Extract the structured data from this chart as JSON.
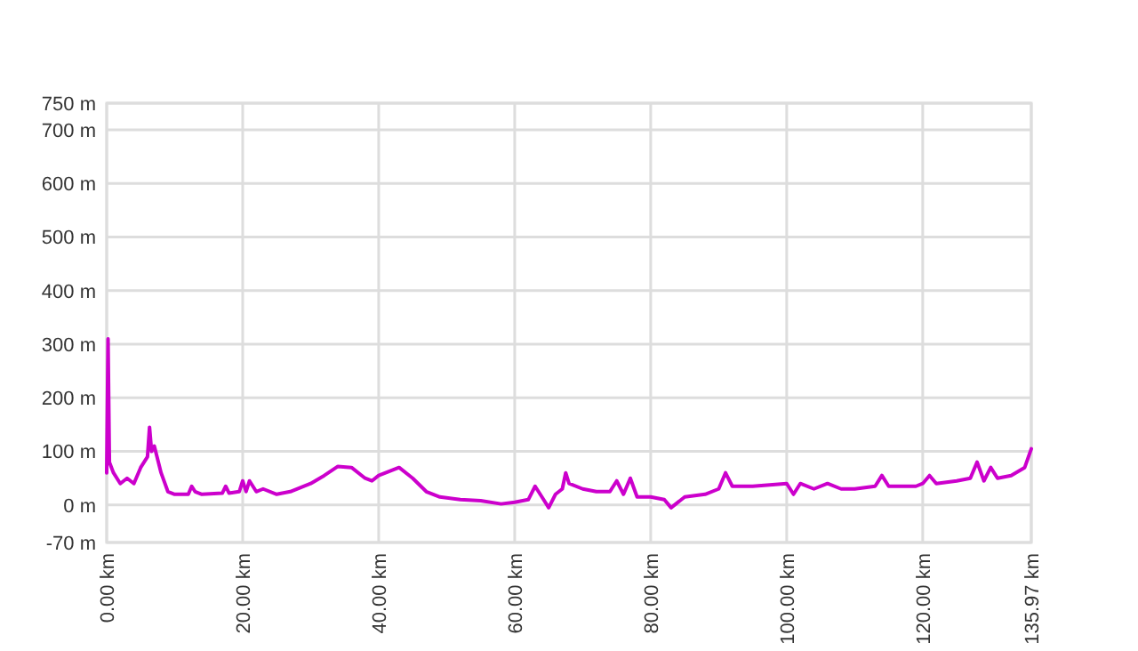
{
  "chart_data": {
    "type": "line",
    "x": [
      0,
      0.2,
      0.4,
      1,
      2,
      3,
      4,
      5,
      6,
      6.3,
      6.6,
      7,
      8,
      9,
      10,
      12,
      12.5,
      13,
      14,
      17,
      17.5,
      18,
      19.5,
      20,
      20.5,
      21,
      22,
      23,
      25,
      27,
      30,
      32,
      34,
      36,
      38,
      39,
      40,
      42,
      43,
      45,
      47,
      49,
      52,
      55,
      58,
      60,
      62,
      63,
      64,
      65,
      66,
      67,
      67.5,
      68,
      70,
      72,
      74,
      75,
      76,
      77,
      78,
      80,
      82,
      83,
      85,
      88,
      90,
      91,
      92,
      95,
      100,
      101,
      102,
      104,
      106,
      108,
      110,
      113,
      114,
      115,
      119,
      120,
      121,
      122,
      125,
      127,
      128,
      129,
      130,
      131,
      133,
      135,
      135.97
    ],
    "series": [
      {
        "color": "#cc00cc",
        "values": [
          60,
          310,
          80,
          60,
          40,
          50,
          40,
          70,
          90,
          145,
          100,
          110,
          60,
          25,
          20,
          20,
          35,
          25,
          20,
          22,
          35,
          22,
          25,
          45,
          25,
          45,
          25,
          30,
          20,
          25,
          40,
          55,
          72,
          70,
          50,
          45,
          55,
          65,
          70,
          50,
          25,
          15,
          10,
          8,
          2,
          5,
          10,
          35,
          15,
          -5,
          20,
          30,
          60,
          40,
          30,
          25,
          25,
          45,
          20,
          50,
          15,
          15,
          10,
          -5,
          15,
          20,
          30,
          60,
          35,
          35,
          40,
          20,
          40,
          30,
          40,
          30,
          30,
          35,
          55,
          35,
          35,
          40,
          55,
          40,
          45,
          50,
          80,
          45,
          70,
          50,
          55,
          70,
          105
        ]
      }
    ],
    "xlim": [
      0,
      135.97
    ],
    "xticks": [
      {
        "value": 0,
        "label": "0.00 km"
      },
      {
        "value": 20,
        "label": "20.00 km"
      },
      {
        "value": 40,
        "label": "40.00 km"
      },
      {
        "value": 60,
        "label": "60.00 km"
      },
      {
        "value": 80,
        "label": "80.00 km"
      },
      {
        "value": 100,
        "label": "100.00 km"
      },
      {
        "value": 120,
        "label": "120.00 km"
      },
      {
        "value": 135.97,
        "label": "135.97 km"
      }
    ],
    "ylim": [
      -70,
      750
    ],
    "yticks": [
      {
        "value": -70,
        "label": "-70 m"
      },
      {
        "value": 0,
        "label": "0 m"
      },
      {
        "value": 100,
        "label": "100 m"
      },
      {
        "value": 200,
        "label": "200 m"
      },
      {
        "value": 300,
        "label": "300 m"
      },
      {
        "value": 400,
        "label": "400 m"
      },
      {
        "value": 500,
        "label": "500 m"
      },
      {
        "value": 600,
        "label": "600 m"
      },
      {
        "value": 700,
        "label": "700 m"
      },
      {
        "value": 750,
        "label": "750 m"
      }
    ],
    "grid": true,
    "marker": "none",
    "line_style": "solid"
  }
}
